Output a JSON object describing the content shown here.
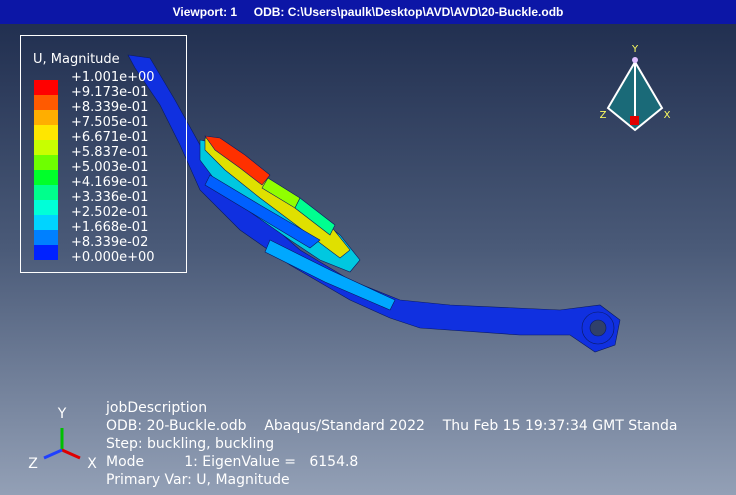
{
  "header": {
    "title": "Viewport: 1     ODB: C:\\Users\\paulk\\Desktop\\AVD\\AVD\\20-Buckle.odb"
  },
  "legend": {
    "title": "U, Magnitude",
    "labels": [
      "+1.001e+00",
      "+9.173e-01",
      "+8.339e-01",
      "+7.505e-01",
      "+6.671e-01",
      "+5.837e-01",
      "+5.003e-01",
      "+4.169e-01",
      "+3.336e-01",
      "+2.502e-01",
      "+1.668e-01",
      "+8.339e-02",
      "+0.000e+00"
    ],
    "colors": [
      "#ff0000",
      "#ff5a00",
      "#ffae00",
      "#ffe600",
      "#c8ff00",
      "#6eff00",
      "#00ff2a",
      "#00ff8c",
      "#00ffd8",
      "#00d4ff",
      "#0080ff",
      "#0022ff"
    ]
  },
  "triad_top": {
    "y": "Y",
    "z": "Z",
    "x": "X"
  },
  "triad_bottom": {
    "y": "Y",
    "z": "Z",
    "x": "X"
  },
  "info": [
    "jobDescription",
    "ODB: 20-Buckle.odb    Abaqus/Standard 2022    Thu Feb 15 19:37:34 GMT Standa",
    "Step: buckling, buckling",
    "Mode         1: EigenValue =   6154.8",
    "Primary Var: U, Magnitude"
  ]
}
